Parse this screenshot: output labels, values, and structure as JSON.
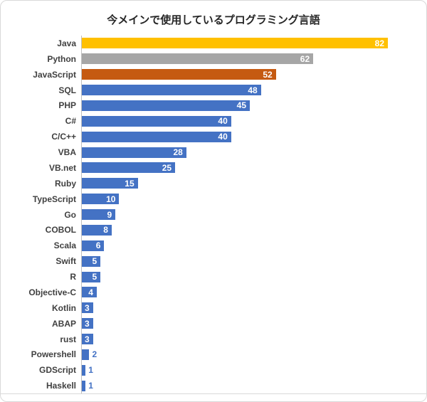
{
  "title": "今メインで使用しているプログラミング言語",
  "chart_data": {
    "type": "bar",
    "orientation": "horizontal",
    "title": "今メインで使用しているプログラミング言語",
    "categories": [
      "Java",
      "Python",
      "JavaScript",
      "SQL",
      "PHP",
      "C#",
      "C/C++",
      "VBA",
      "VB.net",
      "Ruby",
      "TypeScript",
      "Go",
      "COBOL",
      "Scala",
      "Swift",
      "R",
      "Objective-C",
      "Kotlin",
      "ABAP",
      "rust",
      "Powershell",
      "GDScript",
      "Haskell"
    ],
    "values": [
      82,
      62,
      52,
      48,
      45,
      40,
      40,
      28,
      25,
      15,
      10,
      9,
      8,
      6,
      5,
      5,
      4,
      3,
      3,
      3,
      2,
      1,
      1
    ],
    "xlim": [
      0,
      90
    ],
    "grid": false,
    "legend": "none",
    "value_labels": "end-of-bar",
    "outside_label_threshold": 3,
    "colors": {
      "Java": "#FFC000",
      "Python": "#A6A6A6",
      "JavaScript": "#C55A11",
      "default": "#4472C4"
    },
    "label_color_inside": "#FFFFFF",
    "label_color_outside": "#4472C4"
  }
}
